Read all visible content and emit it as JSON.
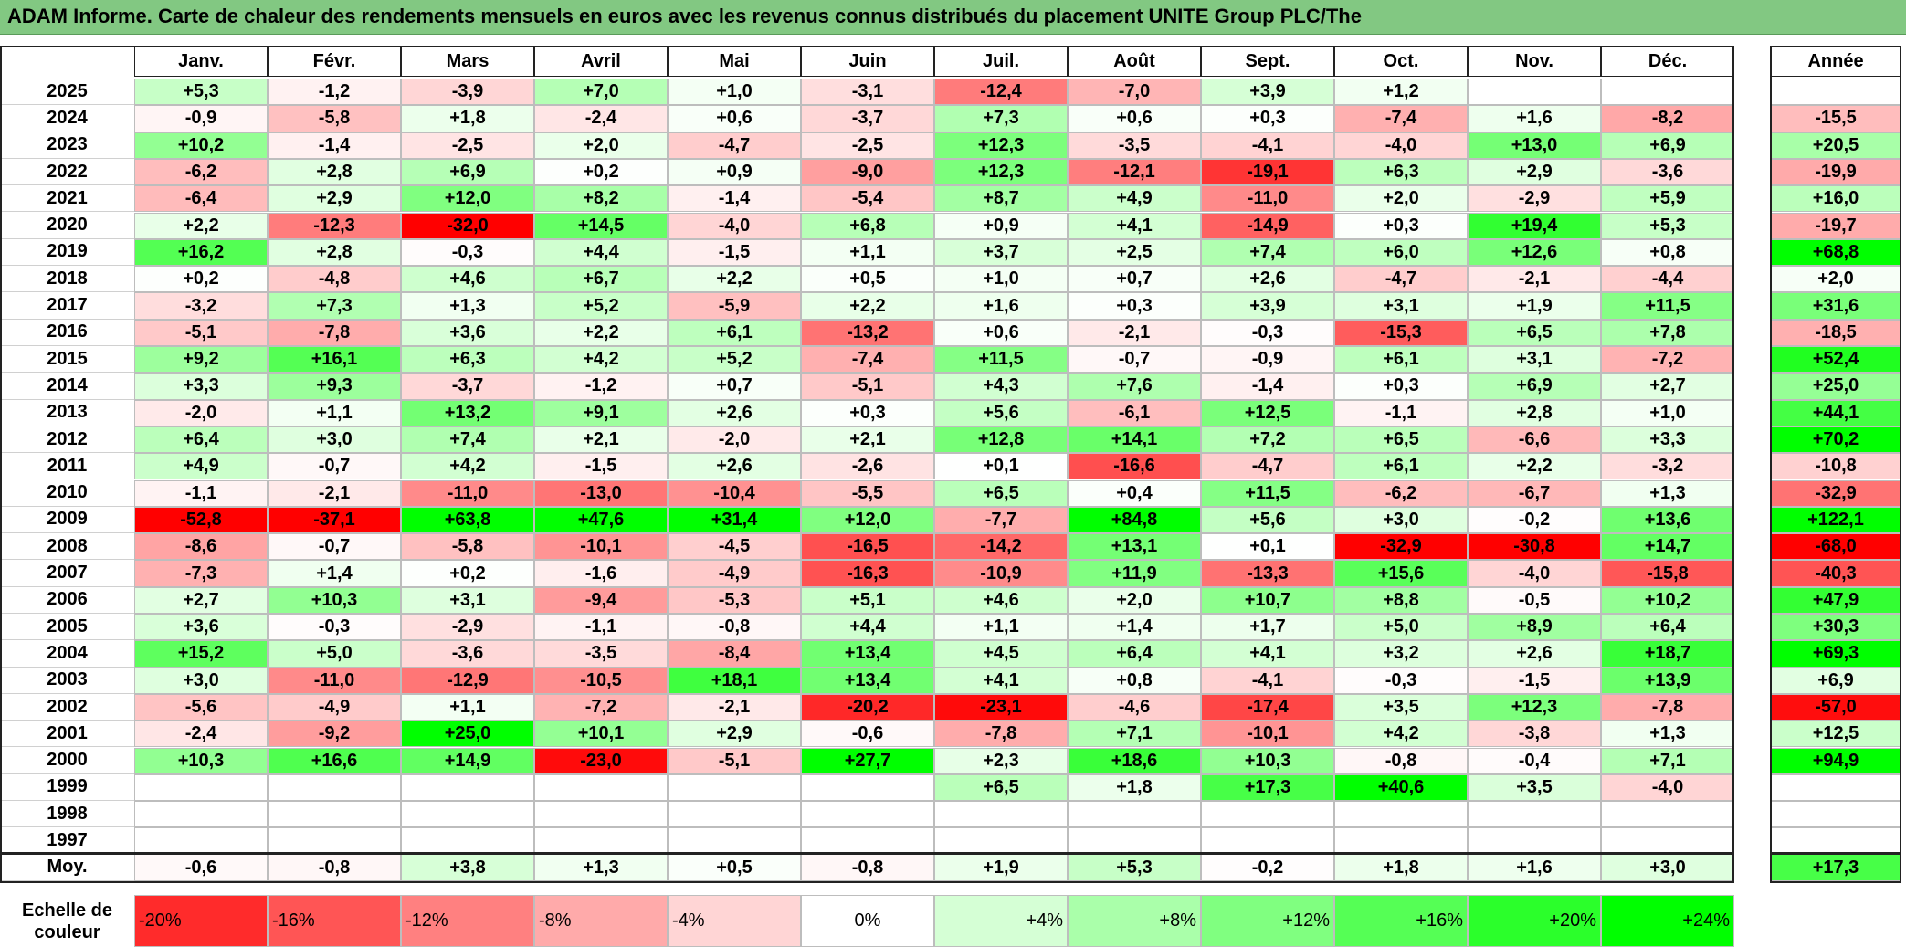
{
  "title": "ADAM Informe. Carte de chaleur des rendements mensuels en euros avec les revenus connus distribués du placement UNITE Group PLC/The",
  "chart_data": {
    "type": "heatmap",
    "title": "ADAM Informe. Carte de chaleur des rendements mensuels en euros avec les revenus connus distribués du placement UNITE Group PLC/The",
    "columns": [
      "Janv.",
      "Févr.",
      "Mars",
      "Avril",
      "Mai",
      "Juin",
      "Juil.",
      "Août",
      "Sept.",
      "Oct.",
      "Nov.",
      "Déc."
    ],
    "year_header": "Année",
    "rows": [
      {
        "year": "2025",
        "values": [
          "+5,3",
          "-1,2",
          "-3,9",
          "+7,0",
          "+1,0",
          "-3,1",
          "-12,4",
          "-7,0",
          "+3,9",
          "+1,2",
          "",
          ""
        ],
        "annual": ""
      },
      {
        "year": "2024",
        "values": [
          "-0,9",
          "-5,8",
          "+1,8",
          "-2,4",
          "+0,6",
          "-3,7",
          "+7,3",
          "+0,6",
          "+0,3",
          "-7,4",
          "+1,6",
          "-8,2"
        ],
        "annual": "-15,5"
      },
      {
        "year": "2023",
        "values": [
          "+10,2",
          "-1,4",
          "-2,5",
          "+2,0",
          "-4,7",
          "-2,5",
          "+12,3",
          "-3,5",
          "-4,1",
          "-4,0",
          "+13,0",
          "+6,9"
        ],
        "annual": "+20,5"
      },
      {
        "year": "2022",
        "values": [
          "-6,2",
          "+2,8",
          "+6,9",
          "+0,2",
          "+0,9",
          "-9,0",
          "+12,3",
          "-12,1",
          "-19,1",
          "+6,3",
          "+2,9",
          "-3,6"
        ],
        "annual": "-19,9"
      },
      {
        "year": "2021",
        "values": [
          "-6,4",
          "+2,9",
          "+12,0",
          "+8,2",
          "-1,4",
          "-5,4",
          "+8,7",
          "+4,9",
          "-11,0",
          "+2,0",
          "-2,9",
          "+5,9"
        ],
        "annual": "+16,0"
      },
      {
        "year": "2020",
        "values": [
          "+2,2",
          "-12,3",
          "-32,0",
          "+14,5",
          "-4,0",
          "+6,8",
          "+0,9",
          "+4,1",
          "-14,9",
          "+0,3",
          "+19,4",
          "+5,3"
        ],
        "annual": "-19,7"
      },
      {
        "year": "2019",
        "values": [
          "+16,2",
          "+2,8",
          "-0,3",
          "+4,4",
          "-1,5",
          "+1,1",
          "+3,7",
          "+2,5",
          "+7,4",
          "+6,0",
          "+12,6",
          "+0,8"
        ],
        "annual": "+68,8"
      },
      {
        "year": "2018",
        "values": [
          "+0,2",
          "-4,8",
          "+4,6",
          "+6,7",
          "+2,2",
          "+0,5",
          "+1,0",
          "+0,7",
          "+2,6",
          "-4,7",
          "-2,1",
          "-4,4"
        ],
        "annual": "+2,0"
      },
      {
        "year": "2017",
        "values": [
          "-3,2",
          "+7,3",
          "+1,3",
          "+5,2",
          "-5,9",
          "+2,2",
          "+1,6",
          "+0,3",
          "+3,9",
          "+3,1",
          "+1,9",
          "+11,5"
        ],
        "annual": "+31,6"
      },
      {
        "year": "2016",
        "values": [
          "-5,1",
          "-7,8",
          "+3,6",
          "+2,2",
          "+6,1",
          "-13,2",
          "+0,6",
          "-2,1",
          "-0,3",
          "-15,3",
          "+6,5",
          "+7,8"
        ],
        "annual": "-18,5"
      },
      {
        "year": "2015",
        "values": [
          "+9,2",
          "+16,1",
          "+6,3",
          "+4,2",
          "+5,2",
          "-7,4",
          "+11,5",
          "-0,7",
          "-0,9",
          "+6,1",
          "+3,1",
          "-7,2"
        ],
        "annual": "+52,4"
      },
      {
        "year": "2014",
        "values": [
          "+3,3",
          "+9,3",
          "-3,7",
          "-1,2",
          "+0,7",
          "-5,1",
          "+4,3",
          "+7,6",
          "-1,4",
          "+0,3",
          "+6,9",
          "+2,7"
        ],
        "annual": "+25,0"
      },
      {
        "year": "2013",
        "values": [
          "-2,0",
          "+1,1",
          "+13,2",
          "+9,1",
          "+2,6",
          "+0,3",
          "+5,6",
          "-6,1",
          "+12,5",
          "-1,1",
          "+2,8",
          "+1,0"
        ],
        "annual": "+44,1"
      },
      {
        "year": "2012",
        "values": [
          "+6,4",
          "+3,0",
          "+7,4",
          "+2,1",
          "-2,0",
          "+2,1",
          "+12,8",
          "+14,1",
          "+7,2",
          "+6,5",
          "-6,6",
          "+3,3"
        ],
        "annual": "+70,2"
      },
      {
        "year": "2011",
        "values": [
          "+4,9",
          "-0,7",
          "+4,2",
          "-1,5",
          "+2,6",
          "-2,6",
          "+0,1",
          "-16,6",
          "-4,7",
          "+6,1",
          "+2,2",
          "-3,2"
        ],
        "annual": "-10,8"
      },
      {
        "year": "2010",
        "values": [
          "-1,1",
          "-2,1",
          "-11,0",
          "-13,0",
          "-10,4",
          "-5,5",
          "+6,5",
          "+0,4",
          "+11,5",
          "-6,2",
          "-6,7",
          "+1,3"
        ],
        "annual": "-32,9"
      },
      {
        "year": "2009",
        "values": [
          "-52,8",
          "-37,1",
          "+63,8",
          "+47,6",
          "+31,4",
          "+12,0",
          "-7,7",
          "+84,8",
          "+5,6",
          "+3,0",
          "-0,2",
          "+13,6"
        ],
        "annual": "+122,1"
      },
      {
        "year": "2008",
        "values": [
          "-8,6",
          "-0,7",
          "-5,8",
          "-10,1",
          "-4,5",
          "-16,5",
          "-14,2",
          "+13,1",
          "+0,1",
          "-32,9",
          "-30,8",
          "+14,7"
        ],
        "annual": "-68,0"
      },
      {
        "year": "2007",
        "values": [
          "-7,3",
          "+1,4",
          "+0,2",
          "-1,6",
          "-4,9",
          "-16,3",
          "-10,9",
          "+11,9",
          "-13,3",
          "+15,6",
          "-4,0",
          "-15,8"
        ],
        "annual": "-40,3"
      },
      {
        "year": "2006",
        "values": [
          "+2,7",
          "+10,3",
          "+3,1",
          "-9,4",
          "-5,3",
          "+5,1",
          "+4,6",
          "+2,0",
          "+10,7",
          "+8,8",
          "-0,5",
          "+10,2"
        ],
        "annual": "+47,9"
      },
      {
        "year": "2005",
        "values": [
          "+3,6",
          "-0,3",
          "-2,9",
          "-1,1",
          "-0,8",
          "+4,4",
          "+1,1",
          "+1,4",
          "+1,7",
          "+5,0",
          "+8,9",
          "+6,4"
        ],
        "annual": "+30,3"
      },
      {
        "year": "2004",
        "values": [
          "+15,2",
          "+5,0",
          "-3,6",
          "-3,5",
          "-8,4",
          "+13,4",
          "+4,5",
          "+6,4",
          "+4,1",
          "+3,2",
          "+2,6",
          "+18,7"
        ],
        "annual": "+69,3"
      },
      {
        "year": "2003",
        "values": [
          "+3,0",
          "-11,0",
          "-12,9",
          "-10,5",
          "+18,1",
          "+13,4",
          "+4,1",
          "+0,8",
          "-4,1",
          "-0,3",
          "-1,5",
          "+13,9"
        ],
        "annual": "+6,9"
      },
      {
        "year": "2002",
        "values": [
          "-5,6",
          "-4,9",
          "+1,1",
          "-7,2",
          "-2,1",
          "-20,2",
          "-23,1",
          "-4,6",
          "-17,4",
          "+3,5",
          "+12,3",
          "-7,8"
        ],
        "annual": "-57,0"
      },
      {
        "year": "2001",
        "values": [
          "-2,4",
          "-9,2",
          "+25,0",
          "+10,1",
          "+2,9",
          "-0,6",
          "-7,8",
          "+7,1",
          "-10,1",
          "+4,2",
          "-3,8",
          "+1,3"
        ],
        "annual": "+12,5"
      },
      {
        "year": "2000",
        "values": [
          "+10,3",
          "+16,6",
          "+14,9",
          "-23,0",
          "-5,1",
          "+27,7",
          "+2,3",
          "+18,6",
          "+10,3",
          "-0,8",
          "-0,4",
          "+7,1"
        ],
        "annual": "+94,9"
      },
      {
        "year": "1999",
        "values": [
          "",
          "",
          "",
          "",
          "",
          "",
          "+6,5",
          "+1,8",
          "+17,3",
          "+40,6",
          "+3,5",
          "-4,0"
        ],
        "annual": ""
      },
      {
        "year": "1998",
        "values": [
          "",
          "",
          "",
          "",
          "",
          "",
          "",
          "",
          "",
          "",
          "",
          ""
        ],
        "annual": ""
      },
      {
        "year": "1997",
        "values": [
          "",
          "",
          "",
          "",
          "",
          "",
          "",
          "",
          "",
          "",
          "",
          ""
        ],
        "annual": ""
      }
    ],
    "average": {
      "label": "Moy.",
      "values": [
        "-0,6",
        "-0,8",
        "+3,8",
        "+1,3",
        "+0,5",
        "-0,8",
        "+1,9",
        "+5,3",
        "-0,2",
        "+1,8",
        "+1,6",
        "+3,0"
      ],
      "annual": "+17,3"
    },
    "color_scale": {
      "label": "Echelle de couleur",
      "steps": [
        "-20%",
        "-16%",
        "-12%",
        "-8%",
        "-4%",
        "0%",
        "+4%",
        "+8%",
        "+12%",
        "+16%",
        "+20%",
        "+24%"
      ],
      "step_values": [
        -20,
        -16,
        -12,
        -8,
        -4,
        0,
        4,
        8,
        12,
        16,
        20,
        24
      ],
      "negative_color": "#ff0000",
      "positive_color": "#00ff00",
      "neutral_color": "#ffffff"
    }
  }
}
